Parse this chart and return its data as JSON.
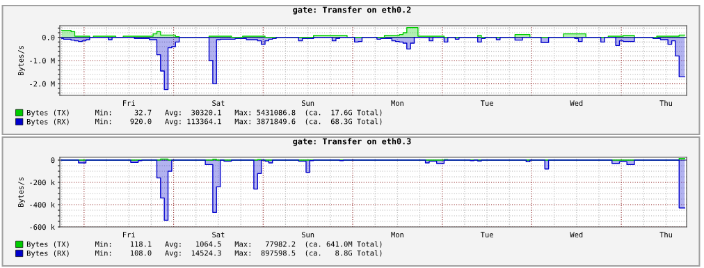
{
  "chart_data": [
    {
      "type": "area",
      "title": "gate: Transfer on eth0.2",
      "ylabel": "Bytes/s",
      "categories": [
        null,
        null,
        null,
        null,
        null,
        null,
        null,
        null,
        null,
        null,
        null,
        null,
        null,
        null,
        null,
        null,
        null,
        null,
        "Fri",
        null,
        null,
        null,
        null,
        null,
        null,
        null,
        null,
        null,
        null,
        null,
        null,
        null,
        null,
        null,
        null,
        null,
        null,
        null,
        null,
        null,
        null,
        null,
        "Sat",
        null,
        null,
        null,
        null,
        null,
        null,
        null,
        null,
        null,
        null,
        null,
        null,
        null,
        null,
        null,
        null,
        null,
        null,
        null,
        null,
        null,
        null,
        null,
        "Sun",
        null,
        null,
        null,
        null,
        null,
        null,
        null,
        null,
        null,
        null,
        null,
        null,
        null,
        null,
        null,
        null,
        null,
        null,
        null,
        null,
        null,
        null,
        null,
        "Mon",
        null,
        null,
        null,
        null,
        null,
        null,
        null,
        null,
        null,
        null,
        null,
        null,
        null,
        null,
        null,
        null,
        null,
        null,
        null,
        null,
        null,
        null,
        null,
        "Tue",
        null,
        null,
        null,
        null,
        null,
        null,
        null,
        null,
        null,
        null,
        null,
        null,
        null,
        null,
        null,
        null,
        null,
        null,
        null,
        null,
        null,
        null,
        null,
        "Wed",
        null,
        null,
        null,
        null,
        null,
        null,
        null,
        null,
        null,
        null,
        null,
        null,
        null,
        null,
        null,
        null,
        null,
        null,
        null,
        null,
        null,
        null,
        null,
        "Thu",
        null,
        null,
        null,
        null,
        null
      ],
      "ylim": [
        -2.5,
        0.5
      ],
      "yticks": [
        {
          "value": 0.4,
          "label": null
        },
        {
          "value": 0.2,
          "label": null
        },
        {
          "value": 0,
          "label": "0.0"
        },
        {
          "value": -0.2,
          "label": null
        },
        {
          "value": -0.4,
          "label": null
        },
        {
          "value": -0.6,
          "label": null
        },
        {
          "value": -0.8,
          "label": null
        },
        {
          "value": -1,
          "label": "-1.0 M"
        },
        {
          "value": -1.2,
          "label": null
        },
        {
          "value": -1.4,
          "label": null
        },
        {
          "value": -1.6,
          "label": null
        },
        {
          "value": -1.8,
          "label": null
        },
        {
          "value": -2,
          "label": "-2.0 M"
        },
        {
          "value": -2.2,
          "label": null
        },
        {
          "value": -2.4,
          "label": null
        }
      ],
      "grid": true,
      "legend": "bottom",
      "series": [
        {
          "name": "Bytes (TX)",
          "color": "#00cc00",
          "values": [
            0.3,
            0.3,
            0.3,
            0.25,
            0.05,
            0.05,
            0.05,
            0.05,
            0,
            0.05,
            0.05,
            0.05,
            0.05,
            0.05,
            0.05,
            0,
            0,
            0.05,
            0.05,
            0.05,
            0.05,
            0.05,
            0.05,
            0.05,
            0.05,
            0.15,
            0.25,
            0.1,
            0.1,
            0.1,
            0.1,
            0.03,
            0,
            0,
            0,
            0,
            0,
            0,
            0,
            0,
            0.05,
            0.05,
            0.05,
            0.05,
            0.05,
            0.05,
            0,
            0,
            0,
            0.05,
            0.05,
            0.05,
            0.05,
            0.05,
            0.05,
            0,
            0,
            0,
            0,
            0,
            0,
            0,
            0,
            0,
            0,
            0,
            0,
            0,
            0.08,
            0.08,
            0.08,
            0.08,
            0.08,
            0.08,
            0.08,
            0.08,
            0.08,
            0,
            0,
            0,
            0,
            0,
            0,
            0,
            0,
            0,
            0,
            0.08,
            0.08,
            0.08,
            0.08,
            0.12,
            0.2,
            0.42,
            0.42,
            0.42,
            0.05,
            0.05,
            0.05,
            0.05,
            0.05,
            0.05,
            0.05,
            0,
            0,
            0,
            0,
            0,
            0,
            0,
            0,
            0,
            0.08,
            0,
            0,
            0,
            0,
            0,
            0,
            0,
            0,
            0,
            0.12,
            0.12,
            0.12,
            0.12,
            0,
            0,
            0,
            0,
            0,
            0,
            0,
            0,
            0,
            0.15,
            0.15,
            0.15,
            0.15,
            0.15,
            0.15,
            0,
            0,
            0,
            0,
            0,
            0,
            0.05,
            0.05,
            0.05,
            0.05,
            0.08,
            0.08,
            0.08,
            0,
            0,
            0,
            0,
            0,
            0,
            0.05,
            0.05,
            0.05,
            0.05,
            0.05,
            0.05,
            0.1,
            0.1
          ]
        },
        {
          "name": "Bytes (RX)",
          "color": "#0000cc",
          "values": [
            -0.05,
            -0.08,
            -0.08,
            -0.12,
            -0.15,
            -0.18,
            -0.15,
            -0.1,
            0,
            0,
            0,
            0,
            0,
            -0.1,
            0,
            0,
            0,
            0,
            0,
            0,
            -0.05,
            -0.05,
            -0.05,
            -0.05,
            -0.1,
            -0.1,
            -0.75,
            -1.45,
            -2.25,
            -0.45,
            -0.4,
            -0.2,
            0,
            0,
            0,
            0,
            0,
            0,
            0,
            0,
            -1.0,
            -2.0,
            -0.1,
            -0.08,
            -0.08,
            -0.08,
            -0.08,
            -0.05,
            -0.05,
            -0.05,
            -0.1,
            -0.1,
            -0.1,
            -0.15,
            -0.3,
            -0.15,
            -0.08,
            -0.05,
            0,
            0,
            0,
            0,
            0,
            0,
            -0.15,
            -0.05,
            -0.05,
            -0.05,
            0,
            0,
            0,
            0,
            0,
            -0.15,
            -0.05,
            0,
            0,
            0,
            0,
            -0.2,
            -0.18,
            0,
            0,
            0,
            0,
            -0.08,
            -0.05,
            -0.05,
            -0.05,
            -0.15,
            -0.18,
            -0.2,
            -0.25,
            -0.5,
            -0.25,
            0,
            0,
            0,
            0,
            -0.15,
            0,
            0,
            0,
            -0.2,
            0,
            0,
            -0.08,
            0,
            0,
            0,
            0,
            0,
            -0.2,
            -0.05,
            0,
            0,
            0,
            -0.1,
            0,
            0,
            0,
            0,
            -0.12,
            -0.12,
            0,
            0,
            0,
            0,
            0,
            -0.22,
            -0.22,
            0,
            0,
            0,
            0,
            0,
            0,
            0,
            -0.05,
            -0.18,
            0,
            0,
            0,
            0,
            0,
            -0.2,
            0,
            0,
            0,
            -0.35,
            -0.15,
            -0.18,
            -0.18,
            -0.18,
            0,
            0,
            0,
            0,
            0,
            -0.05,
            -0.05,
            -0.1,
            -0.1,
            -0.3,
            -0.15,
            -0.8,
            -1.7,
            -1.7
          ]
        }
      ],
      "ref_lines": [
        {
          "axis": "y",
          "value": 0,
          "color": "#000080"
        }
      ],
      "annotations": [
        "Min:     32.7   Avg:  30320.1   Max: 5431086.8  (ca.  17.6G Total)",
        "Min:    920.0   Avg: 113364.1   Max: 3871849.6  (ca.  68.3G Total)"
      ]
    },
    {
      "type": "area",
      "title": "gate: Transfer on eth0.3",
      "ylabel": "Bytes/s",
      "categories": [
        null,
        null,
        null,
        null,
        null,
        null,
        null,
        null,
        null,
        null,
        null,
        null,
        null,
        null,
        null,
        null,
        null,
        null,
        "Fri",
        null,
        null,
        null,
        null,
        null,
        null,
        null,
        null,
        null,
        null,
        null,
        null,
        null,
        null,
        null,
        null,
        null,
        null,
        null,
        null,
        null,
        null,
        null,
        "Sat",
        null,
        null,
        null,
        null,
        null,
        null,
        null,
        null,
        null,
        null,
        null,
        null,
        null,
        null,
        null,
        null,
        null,
        null,
        null,
        null,
        null,
        null,
        null,
        "Sun",
        null,
        null,
        null,
        null,
        null,
        null,
        null,
        null,
        null,
        null,
        null,
        null,
        null,
        null,
        null,
        null,
        null,
        null,
        null,
        null,
        null,
        null,
        null,
        "Mon",
        null,
        null,
        null,
        null,
        null,
        null,
        null,
        null,
        null,
        null,
        null,
        null,
        null,
        null,
        null,
        null,
        null,
        null,
        null,
        null,
        null,
        null,
        null,
        "Tue",
        null,
        null,
        null,
        null,
        null,
        null,
        null,
        null,
        null,
        null,
        null,
        null,
        null,
        null,
        null,
        null,
        null,
        null,
        null,
        null,
        null,
        null,
        null,
        "Wed",
        null,
        null,
        null,
        null,
        null,
        null,
        null,
        null,
        null,
        null,
        null,
        null,
        null,
        null,
        null,
        null,
        null,
        null,
        null,
        null,
        null,
        null,
        null,
        "Thu",
        null,
        null,
        null,
        null,
        null
      ],
      "ylim": [
        -600,
        25
      ],
      "yticks": [
        {
          "value": 0,
          "label": "0"
        },
        {
          "value": -50,
          "label": null
        },
        {
          "value": -100,
          "label": null
        },
        {
          "value": -150,
          "label": null
        },
        {
          "value": -200,
          "label": "-200 k"
        },
        {
          "value": -250,
          "label": null
        },
        {
          "value": -300,
          "label": null
        },
        {
          "value": -350,
          "label": null
        },
        {
          "value": -400,
          "label": "-400 k"
        },
        {
          "value": -450,
          "label": null
        },
        {
          "value": -500,
          "label": null
        },
        {
          "value": -550,
          "label": null
        },
        {
          "value": -600,
          "label": "-600 k"
        }
      ],
      "grid": true,
      "legend": "bottom",
      "series": [
        {
          "name": "Bytes (TX)",
          "color": "#00cc00",
          "values": [
            0,
            0,
            0,
            0,
            0,
            0,
            0,
            0,
            0,
            0,
            0,
            0,
            0,
            0,
            0,
            0,
            0,
            0,
            0,
            0,
            0,
            0,
            0,
            0,
            0,
            0,
            0,
            10,
            10,
            0,
            0,
            0,
            0,
            0,
            0,
            0,
            0,
            0,
            0,
            0,
            0,
            8,
            0,
            0,
            0,
            0,
            0,
            0,
            0,
            0,
            0,
            0,
            0,
            5,
            0,
            0,
            0,
            0,
            0,
            0,
            0,
            0,
            0,
            0,
            0,
            0,
            0,
            0,
            0,
            0,
            0,
            0,
            0,
            0,
            0,
            0,
            0,
            0,
            0,
            0,
            0,
            0,
            0,
            0,
            0,
            0,
            0,
            0,
            0,
            0,
            0,
            0,
            0,
            0,
            0,
            0,
            0,
            0,
            0,
            0,
            0,
            0,
            0,
            5,
            0,
            0,
            0,
            0,
            0,
            0,
            0,
            0,
            0,
            0,
            0,
            0,
            0,
            0,
            0,
            0,
            0,
            0,
            0,
            0,
            0,
            0,
            0,
            0,
            0,
            0,
            0,
            0,
            0,
            0,
            0,
            0,
            0,
            0,
            0,
            0,
            0,
            0,
            0,
            0,
            0,
            0,
            0,
            0,
            0,
            0,
            0,
            0,
            0,
            0,
            0,
            0,
            0,
            0,
            0,
            0,
            0,
            0,
            0,
            0,
            0,
            0,
            15,
            15
          ]
        },
        {
          "name": "Bytes (RX)",
          "color": "#0000cc",
          "values": [
            0,
            0,
            0,
            0,
            0,
            -25,
            -25,
            0,
            0,
            0,
            0,
            0,
            0,
            0,
            0,
            0,
            0,
            0,
            0,
            -20,
            -20,
            -5,
            0,
            0,
            0,
            0,
            -160,
            -340,
            -540,
            -100,
            0,
            0,
            0,
            0,
            0,
            0,
            0,
            0,
            0,
            -40,
            -40,
            -470,
            -240,
            0,
            -10,
            -10,
            0,
            0,
            0,
            0,
            0,
            0,
            -260,
            -120,
            0,
            -10,
            -25,
            0,
            0,
            0,
            0,
            0,
            0,
            0,
            -10,
            -10,
            -110,
            -5,
            0,
            0,
            0,
            0,
            0,
            0,
            0,
            -5,
            0,
            0,
            0,
            0,
            0,
            0,
            0,
            0,
            0,
            0,
            0,
            0,
            0,
            0,
            0,
            0,
            0,
            0,
            0,
            0,
            0,
            0,
            -25,
            -10,
            -10,
            -30,
            -30,
            0,
            0,
            0,
            0,
            0,
            0,
            0,
            -5,
            0,
            -8,
            0,
            0,
            0,
            0,
            0,
            0,
            0,
            0,
            0,
            0,
            0,
            0,
            -15,
            0,
            0,
            0,
            0,
            -80,
            0,
            0,
            0,
            0,
            0,
            0,
            0,
            0,
            0,
            0,
            0,
            0,
            0,
            0,
            0,
            0,
            0,
            -30,
            -30,
            -15,
            -15,
            -40,
            -40,
            0,
            0,
            0,
            0,
            0,
            0,
            0,
            0,
            0,
            0,
            0,
            0,
            -430,
            -430
          ]
        }
      ],
      "ref_lines": [
        {
          "axis": "y",
          "value": 0,
          "color": "#000080"
        }
      ],
      "annotations": [
        "Min:    118.1   Avg:   1064.5   Max:   77982.2  (ca. 641.0M Total)",
        "Min:    108.0   Avg:  14524.3   Max:  897598.5  (ca.   8.8G Total)"
      ]
    }
  ]
}
